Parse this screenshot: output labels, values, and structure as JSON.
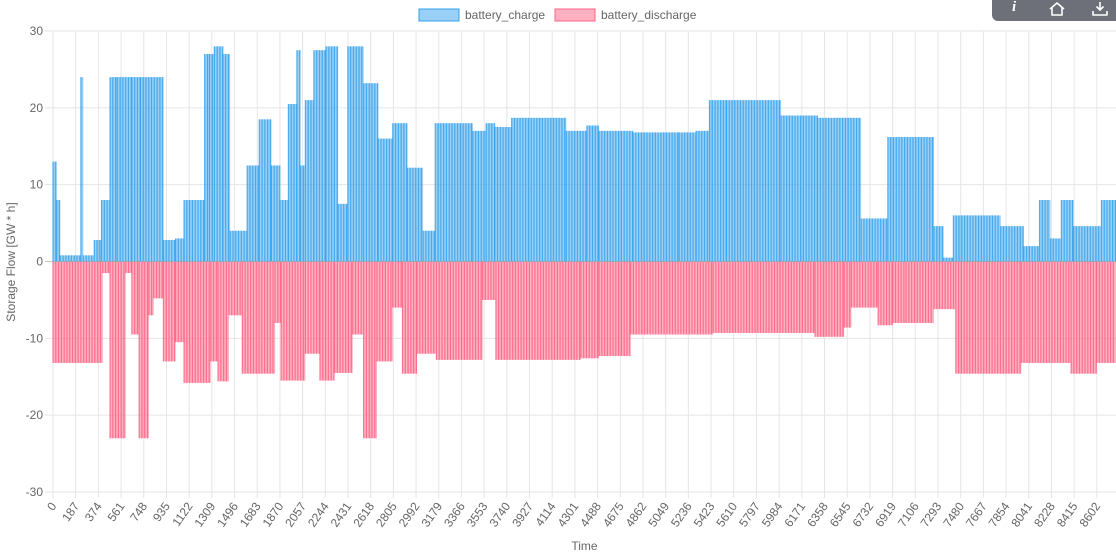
{
  "toolbar": {
    "buttons": [
      {
        "name": "info-icon",
        "glyph": "i"
      },
      {
        "name": "home-icon",
        "glyph": "home"
      },
      {
        "name": "download-icon",
        "glyph": "download"
      }
    ]
  },
  "chart_data": {
    "type": "bar",
    "xlabel": "Time",
    "ylabel": "Storage Flow [GW * h]",
    "ylim": [
      -30,
      30
    ],
    "yticks": [
      30,
      20,
      10,
      0,
      -10,
      -20,
      -30
    ],
    "xticks": [
      0,
      187,
      374,
      561,
      748,
      935,
      1122,
      1309,
      1496,
      1683,
      1870,
      2057,
      2244,
      2431,
      2618,
      2805,
      2992,
      3179,
      3366,
      3553,
      3740,
      3927,
      4114,
      4301,
      4488,
      4675,
      4862,
      5049,
      5236,
      5423,
      5610,
      5797,
      5984,
      6171,
      6358,
      6545,
      6732,
      6919,
      7106,
      7293,
      7480,
      7667,
      7854,
      8041,
      8228,
      8415,
      8602
    ],
    "xlim": [
      0,
      8760
    ],
    "grid": true,
    "legend_position": "top-center",
    "series": [
      {
        "name": "battery_charge",
        "color": "#36a2eb",
        "fill": "rgba(54,162,235,0.5)",
        "segments": [
          {
            "x0": 0,
            "x1": 30,
            "v": 13
          },
          {
            "x0": 30,
            "x1": 60,
            "v": 8
          },
          {
            "x0": 60,
            "x1": 230,
            "v": 0.8
          },
          {
            "x0": 230,
            "x1": 250,
            "v": 24
          },
          {
            "x0": 250,
            "x1": 340,
            "v": 0.8
          },
          {
            "x0": 340,
            "x1": 400,
            "v": 2.8
          },
          {
            "x0": 400,
            "x1": 470,
            "v": 8
          },
          {
            "x0": 470,
            "x1": 530,
            "v": 24
          },
          {
            "x0": 530,
            "x1": 650,
            "v": 24
          },
          {
            "x0": 650,
            "x1": 720,
            "v": 24
          },
          {
            "x0": 720,
            "x1": 910,
            "v": 24
          },
          {
            "x0": 910,
            "x1": 1010,
            "v": 2.8
          },
          {
            "x0": 1010,
            "x1": 1080,
            "v": 3
          },
          {
            "x0": 1080,
            "x1": 1250,
            "v": 8
          },
          {
            "x0": 1250,
            "x1": 1290,
            "v": 27
          },
          {
            "x0": 1290,
            "x1": 1330,
            "v": 27
          },
          {
            "x0": 1330,
            "x1": 1400,
            "v": 28
          },
          {
            "x0": 1400,
            "x1": 1460,
            "v": 27
          },
          {
            "x0": 1460,
            "x1": 1600,
            "v": 4
          },
          {
            "x0": 1600,
            "x1": 1700,
            "v": 12.5
          },
          {
            "x0": 1700,
            "x1": 1800,
            "v": 18.5
          },
          {
            "x0": 1800,
            "x1": 1870,
            "v": 12.5
          },
          {
            "x0": 1870,
            "x1": 1940,
            "v": 8
          },
          {
            "x0": 1940,
            "x1": 2010,
            "v": 20.5
          },
          {
            "x0": 2010,
            "x1": 2040,
            "v": 27.5
          },
          {
            "x0": 2040,
            "x1": 2080,
            "v": 12.5
          },
          {
            "x0": 2080,
            "x1": 2150,
            "v": 21
          },
          {
            "x0": 2150,
            "x1": 2250,
            "v": 27.5
          },
          {
            "x0": 2250,
            "x1": 2350,
            "v": 28
          },
          {
            "x0": 2350,
            "x1": 2430,
            "v": 7.5
          },
          {
            "x0": 2430,
            "x1": 2560,
            "v": 28
          },
          {
            "x0": 2560,
            "x1": 2680,
            "v": 23.2
          },
          {
            "x0": 2680,
            "x1": 2800,
            "v": 16
          },
          {
            "x0": 2800,
            "x1": 2920,
            "v": 18
          },
          {
            "x0": 2920,
            "x1": 3050,
            "v": 12.2
          },
          {
            "x0": 3050,
            "x1": 3150,
            "v": 4
          },
          {
            "x0": 3150,
            "x1": 3460,
            "v": 18
          },
          {
            "x0": 3460,
            "x1": 3570,
            "v": 17
          },
          {
            "x0": 3570,
            "x1": 3640,
            "v": 18
          },
          {
            "x0": 3640,
            "x1": 3780,
            "v": 17.5
          },
          {
            "x0": 3780,
            "x1": 4230,
            "v": 18.7
          },
          {
            "x0": 4230,
            "x1": 4400,
            "v": 17
          },
          {
            "x0": 4400,
            "x1": 4500,
            "v": 17.7
          },
          {
            "x0": 4500,
            "x1": 4780,
            "v": 17
          },
          {
            "x0": 4780,
            "x1": 5160,
            "v": 16.8
          },
          {
            "x0": 5160,
            "x1": 5300,
            "v": 16.8
          },
          {
            "x0": 5300,
            "x1": 5410,
            "v": 17
          },
          {
            "x0": 5410,
            "x1": 5550,
            "v": 21
          },
          {
            "x0": 5550,
            "x1": 6000,
            "v": 21
          },
          {
            "x0": 6000,
            "x1": 6300,
            "v": 19
          },
          {
            "x0": 6300,
            "x1": 6660,
            "v": 18.7
          },
          {
            "x0": 6660,
            "x1": 6880,
            "v": 5.6
          },
          {
            "x0": 6880,
            "x1": 7260,
            "v": 16.2
          },
          {
            "x0": 7260,
            "x1": 7340,
            "v": 4.6
          },
          {
            "x0": 7340,
            "x1": 7420,
            "v": 0.5
          },
          {
            "x0": 7420,
            "x1": 7810,
            "v": 6
          },
          {
            "x0": 7810,
            "x1": 8000,
            "v": 4.6
          },
          {
            "x0": 8000,
            "x1": 8130,
            "v": 2
          },
          {
            "x0": 8130,
            "x1": 8220,
            "v": 8
          },
          {
            "x0": 8220,
            "x1": 8310,
            "v": 3
          },
          {
            "x0": 8310,
            "x1": 8410,
            "v": 8
          },
          {
            "x0": 8410,
            "x1": 8640,
            "v": 4.6
          },
          {
            "x0": 8640,
            "x1": 8760,
            "v": 8
          }
        ]
      },
      {
        "name": "battery_discharge",
        "color": "#ff6384",
        "fill": "rgba(255,99,132,0.5)",
        "segments": [
          {
            "x0": 0,
            "x1": 410,
            "v": -13.2
          },
          {
            "x0": 410,
            "x1": 470,
            "v": -1.5
          },
          {
            "x0": 470,
            "x1": 600,
            "v": -23
          },
          {
            "x0": 600,
            "x1": 650,
            "v": -1.5
          },
          {
            "x0": 650,
            "x1": 710,
            "v": -9.5
          },
          {
            "x0": 710,
            "x1": 790,
            "v": -23
          },
          {
            "x0": 790,
            "x1": 830,
            "v": -7
          },
          {
            "x0": 830,
            "x1": 910,
            "v": -4.8
          },
          {
            "x0": 910,
            "x1": 1010,
            "v": -13
          },
          {
            "x0": 1010,
            "x1": 1080,
            "v": -10.5
          },
          {
            "x0": 1080,
            "x1": 1300,
            "v": -15.8
          },
          {
            "x0": 1300,
            "x1": 1360,
            "v": -13
          },
          {
            "x0": 1360,
            "x1": 1450,
            "v": -15.6
          },
          {
            "x0": 1450,
            "x1": 1560,
            "v": -7
          },
          {
            "x0": 1560,
            "x1": 1830,
            "v": -14.6
          },
          {
            "x0": 1830,
            "x1": 1880,
            "v": -8
          },
          {
            "x0": 1880,
            "x1": 2080,
            "v": -15.5
          },
          {
            "x0": 2080,
            "x1": 2200,
            "v": -12
          },
          {
            "x0": 2200,
            "x1": 2320,
            "v": -15.5
          },
          {
            "x0": 2320,
            "x1": 2470,
            "v": -14.5
          },
          {
            "x0": 2470,
            "x1": 2560,
            "v": -9.5
          },
          {
            "x0": 2560,
            "x1": 2670,
            "v": -23
          },
          {
            "x0": 2670,
            "x1": 2800,
            "v": -13
          },
          {
            "x0": 2800,
            "x1": 2880,
            "v": -6
          },
          {
            "x0": 2880,
            "x1": 3000,
            "v": -14.6
          },
          {
            "x0": 3000,
            "x1": 3160,
            "v": -12
          },
          {
            "x0": 3160,
            "x1": 3540,
            "v": -12.8
          },
          {
            "x0": 3540,
            "x1": 3650,
            "v": -5
          },
          {
            "x0": 3650,
            "x1": 4350,
            "v": -12.8
          },
          {
            "x0": 4350,
            "x1": 4500,
            "v": -12.6
          },
          {
            "x0": 4500,
            "x1": 4760,
            "v": -12.3
          },
          {
            "x0": 4760,
            "x1": 5440,
            "v": -9.5
          },
          {
            "x0": 5440,
            "x1": 6280,
            "v": -9.3
          },
          {
            "x0": 6280,
            "x1": 6520,
            "v": -9.8
          },
          {
            "x0": 6520,
            "x1": 6580,
            "v": -8.6
          },
          {
            "x0": 6580,
            "x1": 6800,
            "v": -6
          },
          {
            "x0": 6800,
            "x1": 6920,
            "v": -8.3
          },
          {
            "x0": 6920,
            "x1": 7030,
            "v": -8
          },
          {
            "x0": 7030,
            "x1": 7260,
            "v": -8
          },
          {
            "x0": 7260,
            "x1": 7440,
            "v": -6.2
          },
          {
            "x0": 7440,
            "x1": 7980,
            "v": -14.6
          },
          {
            "x0": 7980,
            "x1": 8390,
            "v": -13.2
          },
          {
            "x0": 8390,
            "x1": 8600,
            "v": -14.6
          },
          {
            "x0": 8600,
            "x1": 8760,
            "v": -13.2
          }
        ]
      }
    ]
  }
}
